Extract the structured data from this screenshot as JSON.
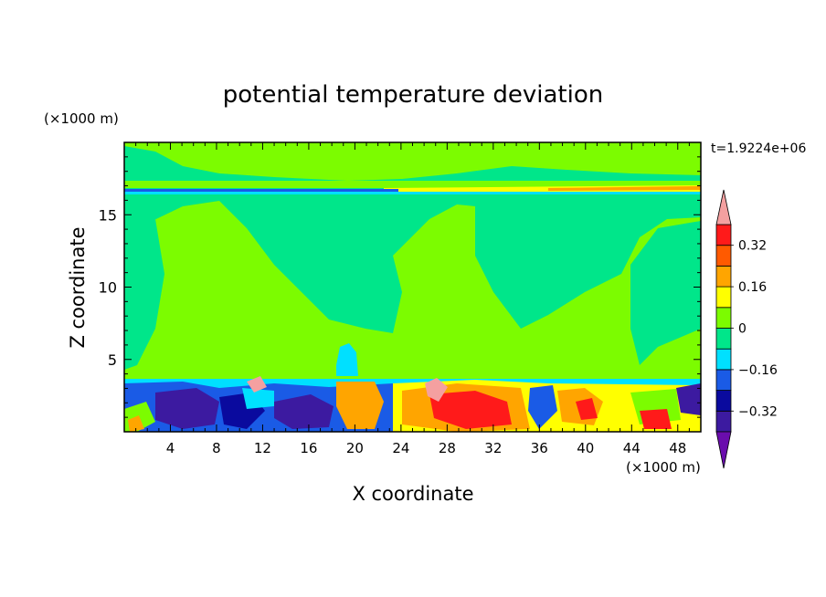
{
  "chart_data": {
    "type": "heatmap",
    "title": "potential temperature deviation",
    "xlabel": "X coordinate",
    "ylabel": "Z coordinate",
    "x_unit": "(×1000 m)",
    "y_unit": "(×1000 m)",
    "time_label": "t=1.9224e+06",
    "xlim": [
      0,
      50
    ],
    "ylim": [
      0,
      20
    ],
    "x_ticks": [
      {
        "value": 4,
        "label": "4"
      },
      {
        "value": 8,
        "label": "8"
      },
      {
        "value": 12,
        "label": "12"
      },
      {
        "value": 16,
        "label": "16"
      },
      {
        "value": 20,
        "label": "20"
      },
      {
        "value": 24,
        "label": "24"
      },
      {
        "value": 28,
        "label": "28"
      },
      {
        "value": 32,
        "label": "32"
      },
      {
        "value": 36,
        "label": "36"
      },
      {
        "value": 40,
        "label": "40"
      },
      {
        "value": 44,
        "label": "44"
      },
      {
        "value": 48,
        "label": "48"
      }
    ],
    "y_ticks": [
      {
        "value": 5,
        "label": "5"
      },
      {
        "value": 10,
        "label": "10"
      },
      {
        "value": 15,
        "label": "15"
      }
    ],
    "colorbar": {
      "levels": [
        -0.4,
        -0.32,
        -0.24,
        -0.16,
        -0.08,
        0,
        0.08,
        0.16,
        0.24,
        0.32,
        0.4
      ],
      "labeled": [
        {
          "value": 0.32,
          "label": "0.32"
        },
        {
          "value": 0.16,
          "label": "0.16"
        },
        {
          "value": 0,
          "label": "0"
        },
        {
          "value": -0.16,
          "label": "−0.16"
        },
        {
          "value": -0.32,
          "label": "−0.32"
        }
      ],
      "colors": [
        "#6a0dad",
        "#3c1aa0",
        "#0a0a9e",
        "#1a5be6",
        "#00e0ff",
        "#00e68a",
        "#7cfc00",
        "#ffff00",
        "#ffa500",
        "#ff5a00",
        "#ff1a1a",
        "#f4a0a0"
      ],
      "over_color": "#f4a0a0",
      "under_color": "#6a0dad"
    },
    "colors": {
      "neg_dark": "#3c1aa0",
      "neg_blue": "#1a5be6",
      "neg_cyan": "#00e0ff",
      "neutral_neg": "#00e68a",
      "neutral_pos": "#7cfc00",
      "pos_yellow": "#ffff00",
      "pos_orange": "#ffa500",
      "pos_red": "#ff1a1a",
      "pos_pink": "#f4a0a0"
    }
  }
}
